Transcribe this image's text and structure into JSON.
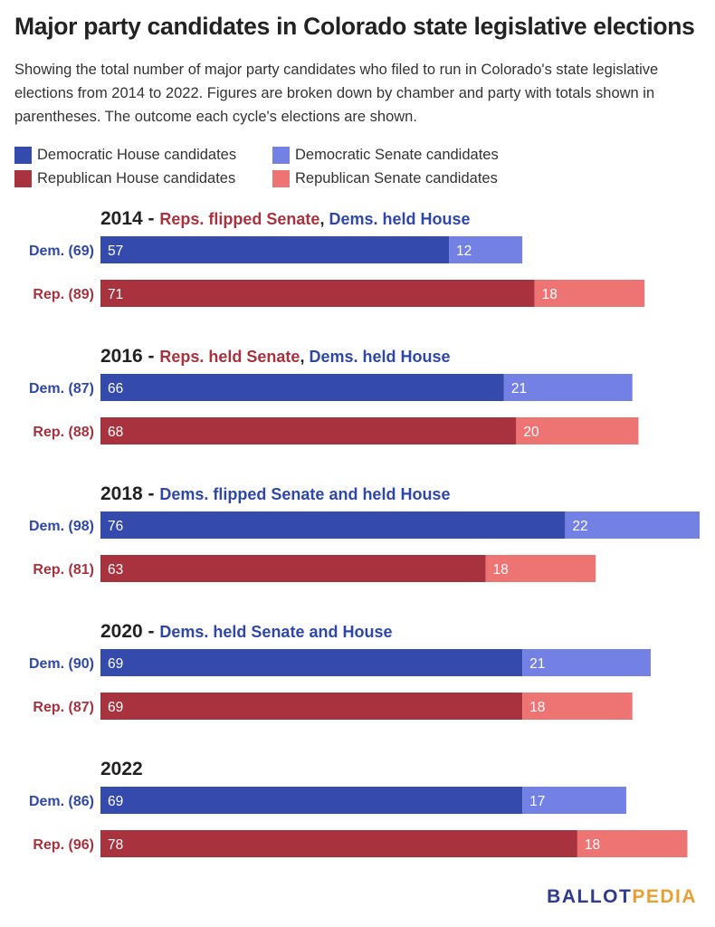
{
  "title": "Major party candidates in Colorado state legislative elections",
  "subtitle": "Showing the total number of major party candidates who filed to run in Colorado's state legislative elections from 2014 to 2022. Figures are broken down by chamber and party with totals shown in parentheses. The outcome each cycle's elections are shown.",
  "legend": [
    {
      "label": "Democratic House candidates",
      "color": "#344aac"
    },
    {
      "label": "Democratic Senate candidates",
      "color": "#7380e4"
    },
    {
      "label": "Republican House candidates",
      "color": "#a8323e"
    },
    {
      "label": "Republican Senate candidates",
      "color": "#ee7474"
    }
  ],
  "colors": {
    "dem_house": "#344aac",
    "dem_senate": "#7380e4",
    "rep_house": "#a8323e",
    "rep_senate": "#ee7474",
    "dem_text": "#2f48a8",
    "rep_text": "#a8323e",
    "year_text": "#222222"
  },
  "chart_data": {
    "type": "bar",
    "orientation": "horizontal",
    "stacked": true,
    "years": [
      {
        "year": "2014",
        "outcome": [
          {
            "text": "Reps. flipped Senate",
            "party": "rep"
          },
          {
            "text": ", ",
            "party": "neutral"
          },
          {
            "text": "Dems. held House",
            "party": "dem"
          }
        ],
        "rows": [
          {
            "label": "Dem. (69)",
            "party": "dem",
            "house": 57,
            "senate": 12
          },
          {
            "label": "Rep. (89)",
            "party": "rep",
            "house": 71,
            "senate": 18
          }
        ]
      },
      {
        "year": "2016",
        "outcome": [
          {
            "text": "Reps. held Senate",
            "party": "rep"
          },
          {
            "text": ", ",
            "party": "neutral"
          },
          {
            "text": "Dems. held House",
            "party": "dem"
          }
        ],
        "rows": [
          {
            "label": "Dem. (87)",
            "party": "dem",
            "house": 66,
            "senate": 21
          },
          {
            "label": "Rep. (88)",
            "party": "rep",
            "house": 68,
            "senate": 20
          }
        ]
      },
      {
        "year": "2018",
        "outcome": [
          {
            "text": "Dems. flipped Senate and held House",
            "party": "dem"
          }
        ],
        "rows": [
          {
            "label": "Dem. (98)",
            "party": "dem",
            "house": 76,
            "senate": 22
          },
          {
            "label": "Rep. (81)",
            "party": "rep",
            "house": 63,
            "senate": 18
          }
        ]
      },
      {
        "year": "2020",
        "outcome": [
          {
            "text": "Dems. held Senate and House",
            "party": "dem"
          }
        ],
        "rows": [
          {
            "label": "Dem. (90)",
            "party": "dem",
            "house": 69,
            "senate": 21
          },
          {
            "label": "Rep. (87)",
            "party": "rep",
            "house": 69,
            "senate": 18
          }
        ]
      },
      {
        "year": "2022",
        "outcome": [],
        "rows": [
          {
            "label": "Dem. (86)",
            "party": "dem",
            "house": 69,
            "senate": 17
          },
          {
            "label": "Rep. (96)",
            "party": "rep",
            "house": 78,
            "senate": 18
          }
        ]
      }
    ],
    "xlim": [
      0,
      98
    ]
  },
  "footer": {
    "logo_part1": "BALLOT",
    "logo_part2": "PEDIA"
  }
}
